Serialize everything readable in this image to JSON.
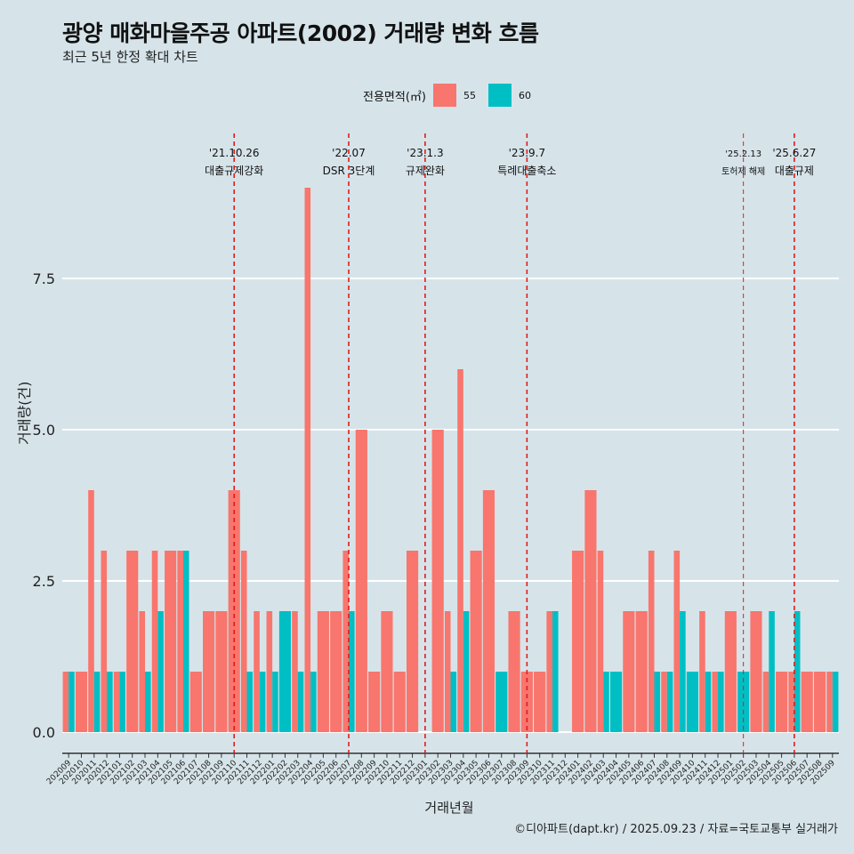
{
  "title": "광양 매화마을주공 아파트(2002) 거래량 변화 흐름",
  "subtitle": "최근 5년 한정 확대 차트",
  "caption": "©디아파트(dapt.kr) / 2025.09.23 / 자료=국토교통부 실거래가",
  "colors": {
    "background": "#d6e4ea",
    "s55": "#f8766d",
    "s60": "#00bfc4",
    "vline": "#e41a1c"
  },
  "chart_data": {
    "type": "bar",
    "title": "광양 매화마을주공 아파트(2002) 거래량 변화 흐름",
    "xlabel": "거래년월",
    "ylabel": "거래량(건)",
    "ylim": [
      -0.35,
      9.5
    ],
    "yticks": [
      "0.0",
      "2.5",
      "5.0",
      "7.5"
    ],
    "grid": "horizontal major lines",
    "legend_title": "전용면적(㎡)",
    "legend_position": "top",
    "categories": [
      "202009",
      "202010",
      "202011",
      "202012",
      "202101",
      "202102",
      "202103",
      "202104",
      "202105",
      "202106",
      "202107",
      "202108",
      "202109",
      "202110",
      "202111",
      "202112",
      "202201",
      "202202",
      "202203",
      "202204",
      "202205",
      "202206",
      "202207",
      "202208",
      "202209",
      "202210",
      "202211",
      "202212",
      "202301",
      "202302",
      "202303",
      "202304",
      "202305",
      "202306",
      "202307",
      "202308",
      "202309",
      "202310",
      "202311",
      "202312",
      "202401",
      "202402",
      "202403",
      "202404",
      "202405",
      "202406",
      "202407",
      "202408",
      "202409",
      "202410",
      "202411",
      "202412",
      "202501",
      "202502",
      "202503",
      "202504",
      "202505",
      "202506",
      "202507",
      "202508",
      "202509"
    ],
    "series": [
      {
        "name": "55",
        "values": [
          1,
          1,
          4,
          3,
          1,
          3,
          2,
          3,
          3,
          3,
          1,
          2,
          2,
          4,
          3,
          2,
          2,
          0,
          2,
          9,
          2,
          2,
          3,
          5,
          1,
          2,
          1,
          3,
          0,
          5,
          2,
          6,
          3,
          4,
          0,
          2,
          1,
          1,
          2,
          0,
          3,
          4,
          3,
          0,
          2,
          2,
          3,
          1,
          3,
          0,
          2,
          1,
          2,
          0,
          2,
          1,
          1,
          1,
          1,
          1,
          1
        ]
      },
      {
        "name": "60",
        "values": [
          1,
          0,
          1,
          1,
          1,
          0,
          1,
          2,
          0,
          3,
          0,
          0,
          0,
          0,
          1,
          1,
          1,
          2,
          1,
          1,
          0,
          0,
          2,
          0,
          0,
          0,
          0,
          0,
          0,
          0,
          1,
          2,
          0,
          0,
          1,
          0,
          0,
          0,
          2,
          0,
          0,
          0,
          1,
          1,
          0,
          0,
          1,
          1,
          2,
          1,
          1,
          1,
          0,
          1,
          0,
          2,
          0,
          2,
          0,
          0,
          1
        ]
      }
    ],
    "annotations": [
      {
        "date": "'21.10.26",
        "label": "대출규제강화",
        "at": "202110"
      },
      {
        "date": "'22.07",
        "label": "DSR 3단계",
        "at": "202207"
      },
      {
        "date": "'23.1.3",
        "label": "규제완화",
        "at": "202301"
      },
      {
        "date": "'23.9.7",
        "label": "특례대출축소",
        "at": "202309"
      },
      {
        "date": "'25.2.13",
        "label": "토허제 해제",
        "at": "202502"
      },
      {
        "date": "'25.6.27",
        "label": "대출규제",
        "at": "202506"
      }
    ]
  }
}
